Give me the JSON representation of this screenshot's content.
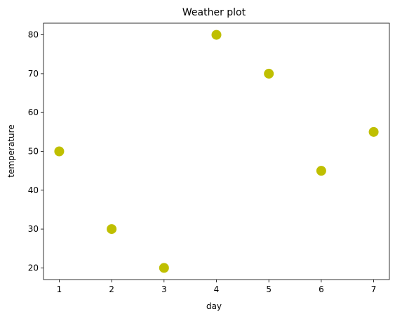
{
  "chart_data": {
    "type": "scatter",
    "title": "Weather plot",
    "xlabel": "day",
    "ylabel": "temperature",
    "x": [
      1,
      2,
      3,
      4,
      5,
      6,
      7
    ],
    "y": [
      50,
      30,
      20,
      80,
      70,
      45,
      55
    ],
    "xlim": [
      0.7,
      7.3
    ],
    "ylim": [
      17,
      83
    ],
    "xticks": [
      1,
      2,
      3,
      4,
      5,
      6,
      7
    ],
    "yticks": [
      20,
      30,
      40,
      50,
      60,
      70,
      80
    ],
    "grid": false,
    "marker_color": "#bfbf00"
  }
}
